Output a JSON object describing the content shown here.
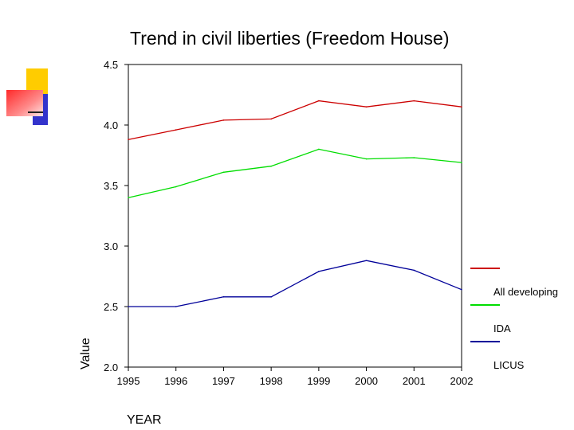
{
  "chart_data": {
    "type": "line",
    "title": "Trend in civil liberties (Freedom House)",
    "xlabel": "YEAR",
    "ylabel": "Value",
    "x": [
      1995,
      1996,
      1997,
      1998,
      1999,
      2000,
      2001,
      2002
    ],
    "x_tick_labels": [
      "1995",
      "1996",
      "1997",
      "1998",
      "1999",
      "2000",
      "2001",
      "2002"
    ],
    "ylim": [
      2.0,
      4.5
    ],
    "y_ticks": [
      2.0,
      2.5,
      3.0,
      3.5,
      4.0,
      4.5
    ],
    "y_tick_labels": [
      "2.0",
      "2.5",
      "3.0",
      "3.5",
      "4.0",
      "4.5"
    ],
    "grid": false,
    "legend_position": "right",
    "series": [
      {
        "name": "All developing",
        "color": "#cc0000",
        "values": [
          3.88,
          3.96,
          4.04,
          4.05,
          4.2,
          4.15,
          4.2,
          4.15
        ]
      },
      {
        "name": "IDA",
        "color": "#00dd00",
        "values": [
          3.4,
          3.49,
          3.61,
          3.66,
          3.8,
          3.72,
          3.73,
          3.69
        ]
      },
      {
        "name": "LICUS",
        "color": "#000099",
        "values": [
          2.5,
          2.5,
          2.58,
          2.58,
          2.79,
          2.88,
          2.8,
          2.64
        ]
      }
    ]
  },
  "colors": {
    "deco_yellow": "#ffcc00",
    "deco_blue": "#3333cc",
    "deco_red": "#ff3333"
  }
}
